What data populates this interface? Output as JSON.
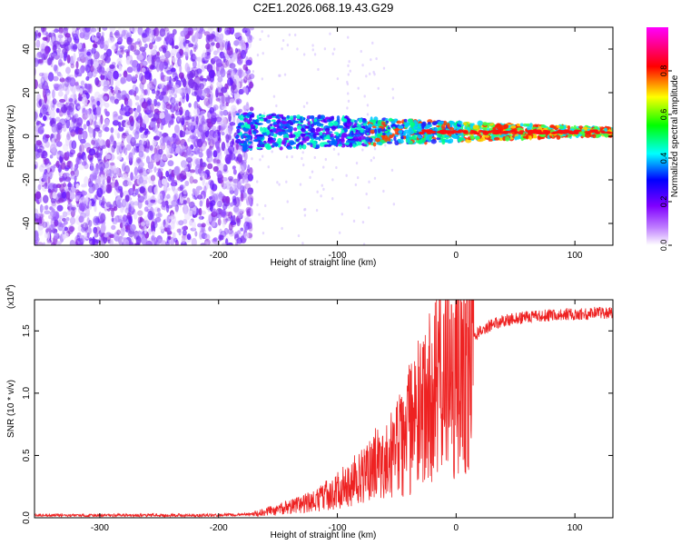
{
  "title": "C2E1.2026.068.19.43.G29",
  "chart_data": [
    {
      "type": "heatmap",
      "name": "spectrogram",
      "xlabel": "Height of straight line (km)",
      "ylabel": "Frequency (Hz)",
      "xlim": [
        -355,
        132
      ],
      "ylim": [
        -50,
        50
      ],
      "xticks": [
        -300,
        -200,
        -100,
        0,
        100
      ],
      "xtick_labels": [
        "-300",
        "-200",
        "-100",
        "0",
        "100"
      ],
      "yticks": [
        -40,
        -20,
        0,
        20,
        40
      ],
      "ytick_labels": [
        "-40",
        "-20",
        "0",
        "20",
        "40"
      ],
      "description_features": {
        "noise_region_x": [
          -355,
          -172
        ],
        "signal_start_x": -185,
        "signal_center_frequency_hz": 2
      },
      "colorbar": {
        "label": "Normalized spectral amplitude",
        "range": [
          0,
          1
        ],
        "ticks": [
          0.0,
          0.2,
          0.4,
          0.6,
          0.8
        ],
        "tick_labels": [
          "0.0",
          "0.2",
          "0.4",
          "0.6",
          "0.8"
        ],
        "colormap": [
          "#ffffff",
          "#8000ff",
          "#0000ff",
          "#00ffff",
          "#00ff00",
          "#ffff00",
          "#ff0000",
          "#ff00ff"
        ]
      }
    },
    {
      "type": "line",
      "name": "snr",
      "xlabel": "Height of straight line (km)",
      "ylabel": "SNR (10 * v/v)",
      "y_multiplier_label": "(x10",
      "y_multiplier_exp": "4",
      "y_multiplier_close": ")",
      "xlim": [
        -355,
        132
      ],
      "ylim": [
        0,
        1.75
      ],
      "xticks": [
        -300,
        -200,
        -100,
        0,
        100
      ],
      "xtick_labels": [
        "-300",
        "-200",
        "-100",
        "0",
        "100"
      ],
      "yticks": [
        0.0,
        0.5,
        1.0,
        1.5
      ],
      "ytick_labels": [
        "0.0",
        "0.5",
        "1.0",
        "1.5"
      ],
      "line_color": "#ee2222",
      "series": [
        {
          "name": "SNR envelope",
          "x": [
            -355,
            -300,
            -250,
            -200,
            -170,
            -150,
            -120,
            -100,
            -80,
            -60,
            -50,
            -40,
            -30,
            -20,
            -10,
            0,
            10,
            20,
            30,
            40,
            50,
            70,
            90,
            110,
            132
          ],
          "values": [
            0.02,
            0.02,
            0.02,
            0.02,
            0.03,
            0.06,
            0.12,
            0.2,
            0.3,
            0.45,
            0.55,
            0.7,
            0.85,
            1.0,
            1.1,
            1.2,
            1.4,
            1.5,
            1.55,
            1.58,
            1.6,
            1.62,
            1.63,
            1.64,
            1.65
          ]
        }
      ]
    }
  ]
}
